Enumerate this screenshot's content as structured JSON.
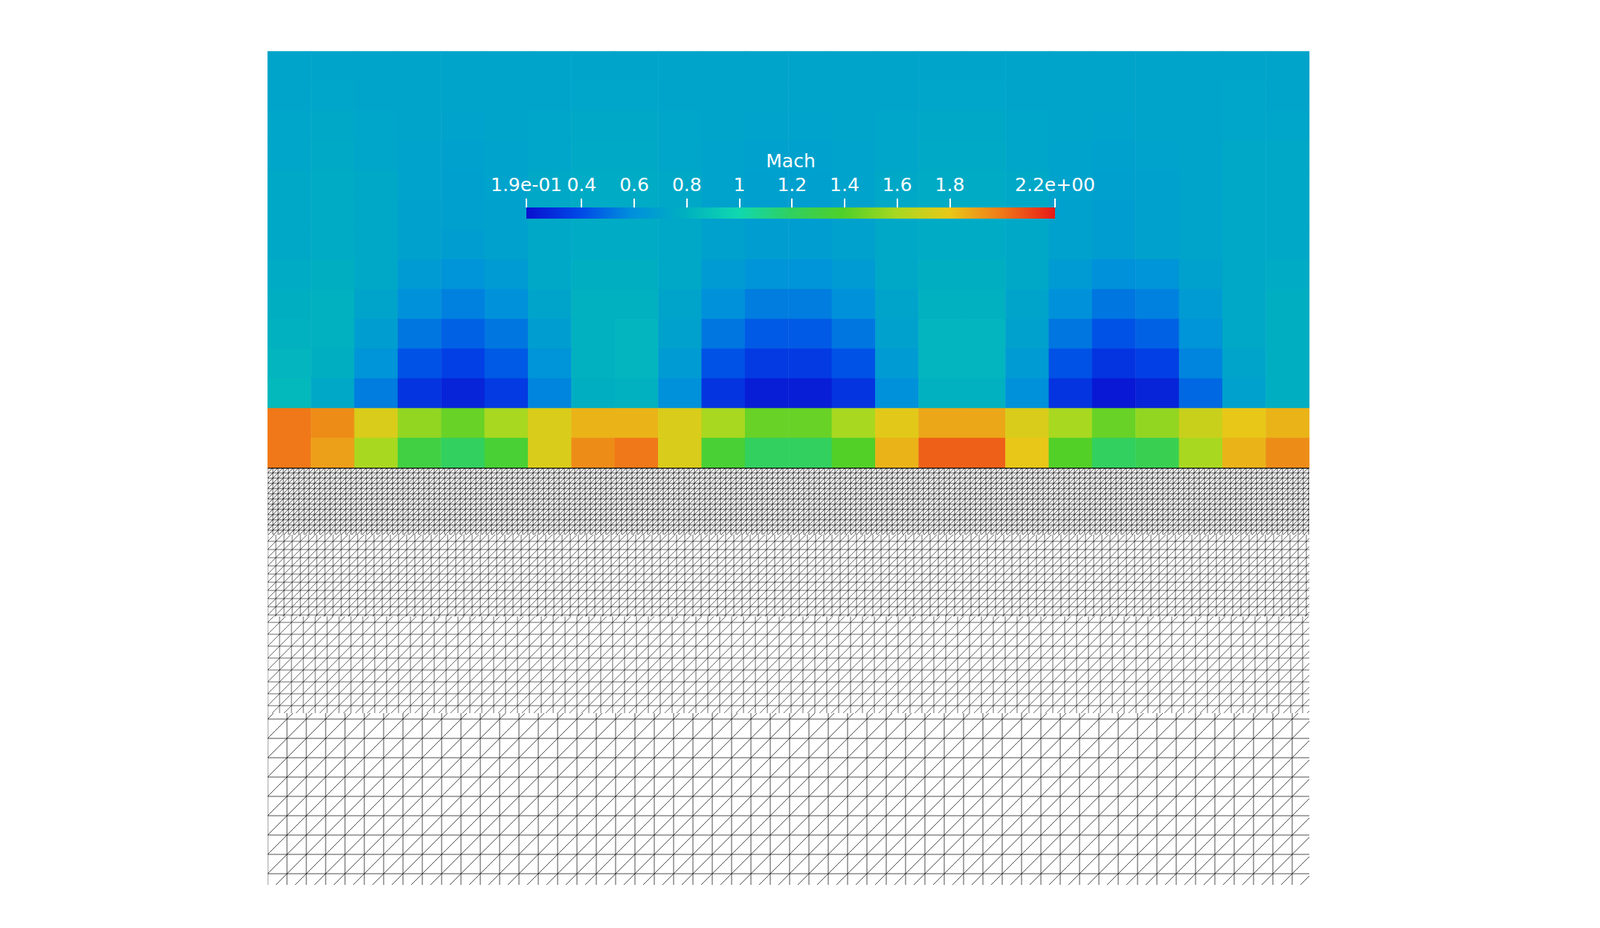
{
  "chart_data": {
    "type": "heatmap",
    "tick_labels": false,
    "colorbar": {
      "title": "Mach",
      "range": [
        0.19,
        2.2
      ],
      "ticks": [
        {
          "value": 0.19,
          "label": "1.9e-01"
        },
        0.4,
        0.6,
        0.8,
        1,
        1.2,
        1.4,
        1.6,
        1.8,
        {
          "value": 2.2,
          "label": "2.2e+00"
        }
      ]
    },
    "cells": [
      [
        0.72,
        0.72,
        0.72,
        0.72,
        0.72,
        0.72,
        0.72,
        0.72,
        0.72,
        0.72,
        0.72,
        0.72,
        0.72,
        0.72,
        0.72,
        0.72,
        0.72,
        0.72,
        0.72,
        0.72,
        0.72,
        0.72,
        0.72,
        0.72
      ],
      [
        0.72,
        0.73,
        0.72,
        0.72,
        0.72,
        0.72,
        0.72,
        0.73,
        0.73,
        0.72,
        0.72,
        0.72,
        0.72,
        0.72,
        0.72,
        0.73,
        0.73,
        0.72,
        0.72,
        0.72,
        0.72,
        0.72,
        0.73,
        0.72
      ],
      [
        0.73,
        0.74,
        0.73,
        0.72,
        0.71,
        0.72,
        0.73,
        0.74,
        0.74,
        0.73,
        0.72,
        0.71,
        0.71,
        0.72,
        0.73,
        0.74,
        0.74,
        0.73,
        0.72,
        0.71,
        0.72,
        0.72,
        0.73,
        0.73
      ],
      [
        0.73,
        0.75,
        0.73,
        0.71,
        0.7,
        0.71,
        0.73,
        0.75,
        0.75,
        0.73,
        0.71,
        0.7,
        0.7,
        0.71,
        0.73,
        0.75,
        0.75,
        0.73,
        0.71,
        0.7,
        0.71,
        0.72,
        0.74,
        0.74
      ],
      [
        0.74,
        0.76,
        0.74,
        0.71,
        0.69,
        0.71,
        0.74,
        0.76,
        0.76,
        0.74,
        0.71,
        0.69,
        0.69,
        0.71,
        0.74,
        0.76,
        0.76,
        0.74,
        0.71,
        0.69,
        0.7,
        0.72,
        0.74,
        0.74
      ],
      [
        0.74,
        0.76,
        0.74,
        0.7,
        0.69,
        0.7,
        0.74,
        0.76,
        0.76,
        0.74,
        0.7,
        0.68,
        0.68,
        0.7,
        0.74,
        0.76,
        0.76,
        0.74,
        0.7,
        0.68,
        0.7,
        0.72,
        0.74,
        0.74
      ],
      [
        0.74,
        0.76,
        0.74,
        0.7,
        0.68,
        0.7,
        0.74,
        0.76,
        0.76,
        0.74,
        0.7,
        0.68,
        0.68,
        0.7,
        0.74,
        0.76,
        0.76,
        0.74,
        0.7,
        0.68,
        0.7,
        0.72,
        0.74,
        0.74
      ],
      [
        0.76,
        0.78,
        0.74,
        0.66,
        0.62,
        0.66,
        0.74,
        0.78,
        0.78,
        0.74,
        0.66,
        0.62,
        0.62,
        0.66,
        0.74,
        0.78,
        0.78,
        0.74,
        0.66,
        0.6,
        0.62,
        0.7,
        0.74,
        0.76
      ],
      [
        0.78,
        0.8,
        0.72,
        0.6,
        0.55,
        0.6,
        0.72,
        0.8,
        0.8,
        0.72,
        0.6,
        0.54,
        0.54,
        0.6,
        0.72,
        0.8,
        0.8,
        0.72,
        0.6,
        0.52,
        0.55,
        0.66,
        0.74,
        0.78
      ],
      [
        0.8,
        0.8,
        0.68,
        0.52,
        0.46,
        0.52,
        0.68,
        0.8,
        0.82,
        0.7,
        0.52,
        0.44,
        0.44,
        0.52,
        0.7,
        0.82,
        0.82,
        0.7,
        0.52,
        0.42,
        0.46,
        0.62,
        0.74,
        0.78
      ],
      [
        0.82,
        0.78,
        0.62,
        0.42,
        0.36,
        0.44,
        0.62,
        0.8,
        0.82,
        0.66,
        0.42,
        0.34,
        0.34,
        0.42,
        0.66,
        0.82,
        0.82,
        0.66,
        0.42,
        0.32,
        0.36,
        0.56,
        0.72,
        0.78
      ],
      [
        0.84,
        0.74,
        0.54,
        0.32,
        0.26,
        0.34,
        0.56,
        0.78,
        0.8,
        0.6,
        0.32,
        0.24,
        0.24,
        0.32,
        0.6,
        0.8,
        0.8,
        0.6,
        0.32,
        0.22,
        0.26,
        0.48,
        0.7,
        0.78
      ],
      [
        2.0,
        1.95,
        1.75,
        1.55,
        1.45,
        1.6,
        1.75,
        1.85,
        1.85,
        1.75,
        1.6,
        1.45,
        1.45,
        1.6,
        1.78,
        1.88,
        1.88,
        1.75,
        1.6,
        1.45,
        1.55,
        1.7,
        1.8,
        1.85
      ],
      [
        2.0,
        1.9,
        1.6,
        1.3,
        1.2,
        1.35,
        1.75,
        1.95,
        2.0,
        1.75,
        1.35,
        1.2,
        1.2,
        1.4,
        1.85,
        2.05,
        2.05,
        1.8,
        1.4,
        1.2,
        1.25,
        1.6,
        1.85,
        1.95
      ]
    ]
  }
}
